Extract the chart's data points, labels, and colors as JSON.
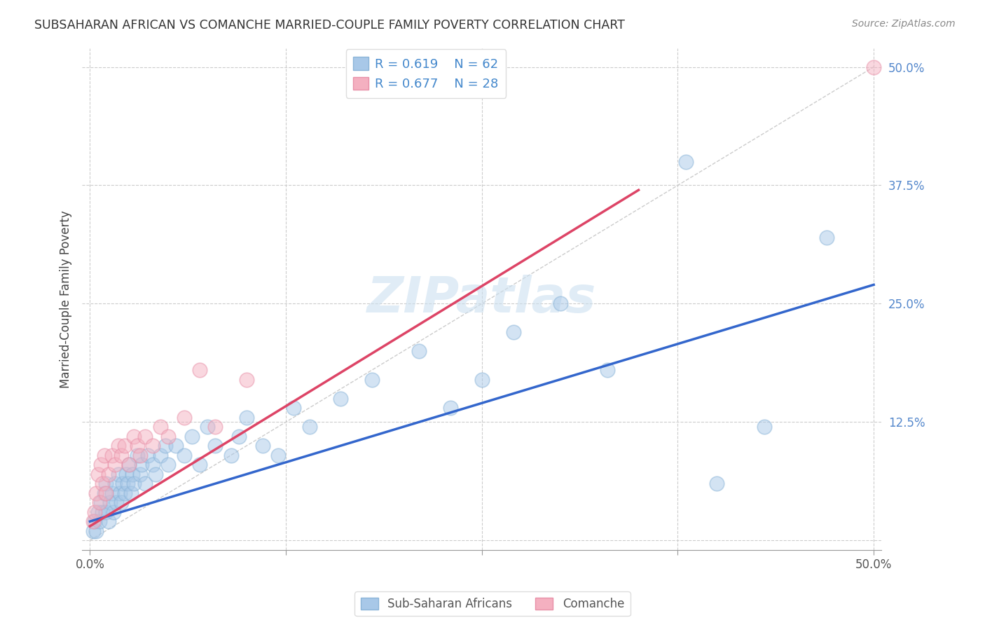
{
  "title": "SUBSAHARAN AFRICAN VS COMANCHE MARRIED-COUPLE FAMILY POVERTY CORRELATION CHART",
  "source": "Source: ZipAtlas.com",
  "ylabel": "Married-Couple Family Poverty",
  "xlim": [
    -0.005,
    0.505
  ],
  "ylim": [
    -0.01,
    0.52
  ],
  "blue_R": 0.619,
  "blue_N": 62,
  "pink_R": 0.677,
  "pink_N": 28,
  "blue_color": "#a8c8e8",
  "pink_color": "#f4b0c0",
  "blue_line_color": "#3366cc",
  "pink_line_color": "#dd4466",
  "legend_label_blue": "Sub-Saharan Africans",
  "legend_label_pink": "Comanche",
  "watermark": "ZIPatlas",
  "blue_x": [
    0.002,
    0.003,
    0.004,
    0.005,
    0.006,
    0.007,
    0.008,
    0.009,
    0.01,
    0.01,
    0.012,
    0.013,
    0.014,
    0.015,
    0.016,
    0.017,
    0.018,
    0.019,
    0.02,
    0.021,
    0.022,
    0.023,
    0.024,
    0.025,
    0.026,
    0.027,
    0.028,
    0.03,
    0.032,
    0.033,
    0.035,
    0.037,
    0.04,
    0.042,
    0.045,
    0.048,
    0.05,
    0.055,
    0.06,
    0.065,
    0.07,
    0.075,
    0.08,
    0.09,
    0.095,
    0.1,
    0.11,
    0.12,
    0.13,
    0.14,
    0.16,
    0.18,
    0.21,
    0.23,
    0.25,
    0.27,
    0.3,
    0.33,
    0.38,
    0.4,
    0.43,
    0.47
  ],
  "blue_y": [
    0.01,
    0.02,
    0.01,
    0.03,
    0.02,
    0.04,
    0.03,
    0.05,
    0.03,
    0.06,
    0.02,
    0.04,
    0.05,
    0.03,
    0.06,
    0.04,
    0.07,
    0.05,
    0.04,
    0.06,
    0.05,
    0.07,
    0.06,
    0.08,
    0.05,
    0.07,
    0.06,
    0.09,
    0.07,
    0.08,
    0.06,
    0.09,
    0.08,
    0.07,
    0.09,
    0.1,
    0.08,
    0.1,
    0.09,
    0.11,
    0.08,
    0.12,
    0.1,
    0.09,
    0.11,
    0.13,
    0.1,
    0.09,
    0.14,
    0.12,
    0.15,
    0.17,
    0.2,
    0.14,
    0.17,
    0.22,
    0.25,
    0.18,
    0.4,
    0.06,
    0.12,
    0.32
  ],
  "pink_x": [
    0.002,
    0.003,
    0.004,
    0.005,
    0.006,
    0.007,
    0.008,
    0.009,
    0.01,
    0.012,
    0.014,
    0.016,
    0.018,
    0.02,
    0.022,
    0.025,
    0.028,
    0.03,
    0.032,
    0.035,
    0.04,
    0.045,
    0.05,
    0.06,
    0.07,
    0.08,
    0.1,
    0.5
  ],
  "pink_y": [
    0.02,
    0.03,
    0.05,
    0.07,
    0.04,
    0.08,
    0.06,
    0.09,
    0.05,
    0.07,
    0.09,
    0.08,
    0.1,
    0.09,
    0.1,
    0.08,
    0.11,
    0.1,
    0.09,
    0.11,
    0.1,
    0.12,
    0.11,
    0.13,
    0.18,
    0.12,
    0.17,
    0.5
  ],
  "blue_line_x0": 0.0,
  "blue_line_y0": 0.02,
  "blue_line_x1": 0.5,
  "blue_line_y1": 0.27,
  "pink_line_x0": 0.0,
  "pink_line_y0": 0.015,
  "pink_line_x1": 0.35,
  "pink_line_y1": 0.37
}
